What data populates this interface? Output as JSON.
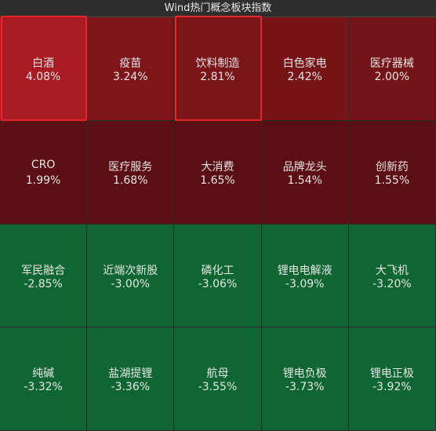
{
  "chart_data": {
    "type": "heatmap",
    "title": "Wind热门概念板块指数",
    "columns": 5,
    "categories": [
      "白酒",
      "疫苗",
      "饮料制造",
      "白色家电",
      "医疗器械",
      "CRO",
      "医疗服务",
      "大消费",
      "品牌龙头",
      "创新药",
      "军民融合",
      "近端次新股",
      "磷化工",
      "锂电电解液",
      "大飞机",
      "纯碱",
      "盐湖提锂",
      "航母",
      "锂电负极",
      "锂电正极"
    ],
    "values": [
      4.08,
      3.24,
      2.81,
      2.42,
      2.0,
      1.99,
      1.68,
      1.65,
      1.54,
      1.55,
      -2.85,
      -3.0,
      -3.06,
      -3.09,
      -3.2,
      -3.32,
      -3.36,
      -3.55,
      -3.73,
      -3.92
    ],
    "value_labels": [
      "4.08%",
      "3.24%",
      "2.81%",
      "2.42%",
      "2.00%",
      "1.99%",
      "1.68%",
      "1.65%",
      "1.54%",
      "1.55%",
      "-2.85%",
      "-3.00%",
      "-3.06%",
      "-3.09%",
      "-3.20%",
      "-3.32%",
      "-3.36%",
      "-3.55%",
      "-3.73%",
      "-3.92%"
    ],
    "colors": [
      "#a81b22",
      "#7e1519",
      "#7a1519",
      "#771418",
      "#741418",
      "#5b0e13",
      "#5b0e13",
      "#5b0e13",
      "#5b0e13",
      "#5b0e13",
      "#0f6632",
      "#0f6632",
      "#0f6632",
      "#0f6632",
      "#0f6632",
      "#0f6632",
      "#0f6632",
      "#0f6632",
      "#0f6632",
      "#0f6632"
    ],
    "highlighted": [
      0,
      2
    ]
  }
}
